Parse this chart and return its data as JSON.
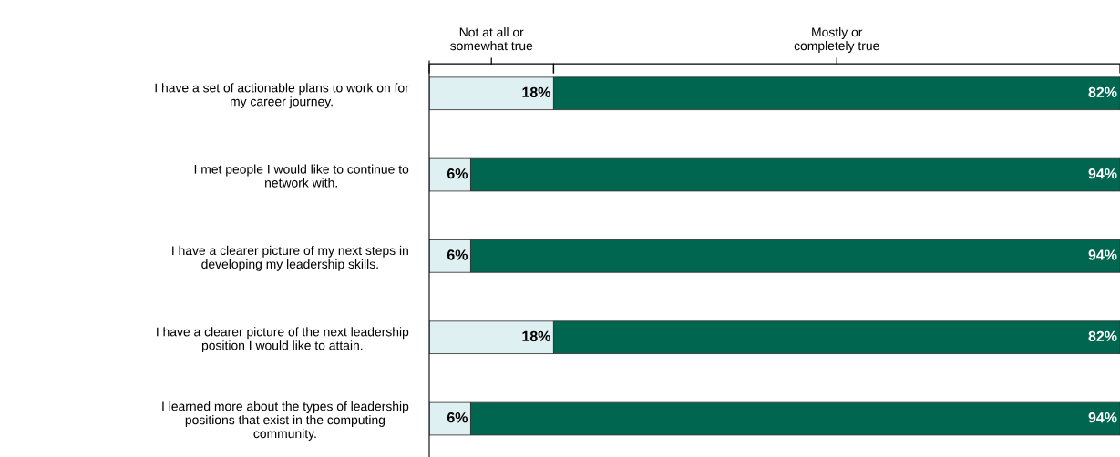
{
  "chart_data": {
    "type": "bar",
    "orientation": "horizontal",
    "stacked": true,
    "grid": false,
    "legend": false,
    "categories": [
      "I have a set of actionable plans to work on for\nmy career journey.",
      "I met people I would like to continue to\nnetwork with.",
      "I have a clearer picture of my next steps in\ndeveloping my leadership skills.",
      "I have a clearer picture of the next leadership\nposition I would like to attain.",
      "I learned more about the types of leadership\npositions that exist in the computing\ncommunity."
    ],
    "series": [
      {
        "name": "Not at all or\nsomewhat true",
        "color": "#dff0f2",
        "values": [
          18,
          6,
          6,
          18,
          6
        ],
        "value_labels": [
          "18%",
          "6%",
          "6%",
          "18%",
          "6%"
        ]
      },
      {
        "name": "Mostly or\ncompletely true",
        "color": "#006650",
        "values": [
          82,
          94,
          94,
          82,
          94
        ],
        "value_labels": [
          "82%",
          "94%",
          "94%",
          "82%",
          "94%"
        ]
      }
    ]
  }
}
